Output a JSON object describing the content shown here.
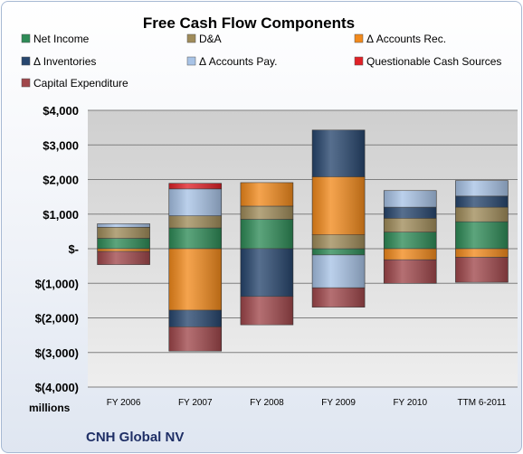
{
  "chart_data": {
    "type": "bar",
    "stacked": true,
    "title": "Free Cash Flow Components",
    "categories": [
      "FY 2006",
      "FY 2007",
      "FY 2008",
      "FY 2009",
      "FY 2010",
      "TTM 6-2011"
    ],
    "series": [
      {
        "name": "Net Income",
        "color": "#2e8b57",
        "values": [
          300,
          600,
          850,
          -180,
          480,
          780
        ]
      },
      {
        "name": "D&A",
        "color": "#a08c5a",
        "values": [
          320,
          350,
          380,
          400,
          400,
          420
        ]
      },
      {
        "name": "Δ Accounts Rec.",
        "color": "#f28a1c",
        "values": [
          -80,
          -1780,
          680,
          1680,
          -320,
          -250
        ]
      },
      {
        "name": "Δ Inventories",
        "color": "#27466e",
        "values": [
          0,
          -480,
          -1380,
          1350,
          320,
          320
        ]
      },
      {
        "name": "Δ Accounts Pay.",
        "color": "#a8c3e6",
        "values": [
          100,
          780,
          0,
          -950,
          480,
          450
        ]
      },
      {
        "name": "Questionable Cash Sources",
        "color": "#e02127",
        "values": [
          0,
          160,
          0,
          0,
          0,
          0
        ]
      },
      {
        "name": "Capital Expenditure",
        "color": "#a0474b",
        "values": [
          -380,
          -700,
          -820,
          -560,
          -680,
          -720
        ]
      }
    ],
    "ylim": [
      -4000,
      4000
    ],
    "yticks": [
      4000,
      3000,
      2000,
      1000,
      0,
      -1000,
      -2000,
      -3000,
      -4000
    ],
    "ytick_labels": [
      "$4,000",
      "$3,000",
      "$2,000",
      "$1,000",
      "$-",
      "$(1,000)",
      "$(2,000)",
      "$(3,000)",
      "$(4,000)"
    ],
    "ylabel": "millions",
    "legend_position": "top",
    "grid": true,
    "xlabel": ""
  },
  "company_label": "CNH Global NV"
}
